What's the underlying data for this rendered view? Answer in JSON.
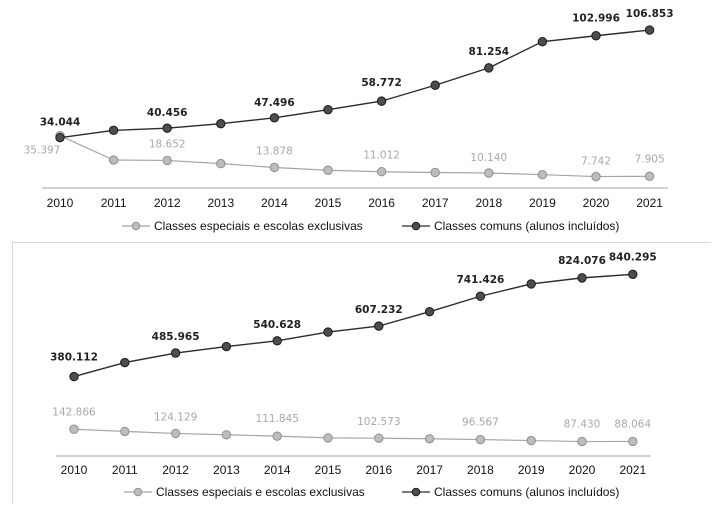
{
  "colors": {
    "comuns_line": "#2b2b2b",
    "comuns_marker": "#4d4d4d",
    "especiais_line": "#a6a6a6",
    "especiais_marker": "#bdbdbd",
    "axis": "#a6a6a6"
  },
  "chart_data": [
    {
      "type": "line",
      "categories": [
        "2010",
        "2011",
        "2012",
        "2013",
        "2014",
        "2015",
        "2016",
        "2017",
        "2018",
        "2019",
        "2020",
        "2021"
      ],
      "grid": false,
      "legend_position": "bottom",
      "ylim": [
        0,
        115000
      ],
      "series": [
        {
          "name": "Classes especiais e escolas exclusivas",
          "key": "especiais",
          "values": [
            35397,
            18900,
            18652,
            16500,
            13878,
            12000,
            11012,
            10500,
            10140,
            9000,
            7742,
            7905
          ],
          "labels": {
            "0": "35.397",
            "2": "18.652",
            "4": "13.878",
            "6": "11.012",
            "8": "10.140",
            "10": "7.742",
            "11": "7.905"
          }
        },
        {
          "name": "Classes comuns (alunos incluídos)",
          "key": "comuns",
          "values": [
            34044,
            39000,
            40456,
            43500,
            47496,
            53000,
            58772,
            69500,
            81254,
            99000,
            102996,
            106853
          ],
          "labels": {
            "0": "34.044",
            "2": "40.456",
            "4": "47.496",
            "6": "58.772",
            "8": "81.254",
            "10": "102.996",
            "11": "106.853"
          }
        }
      ]
    },
    {
      "type": "line",
      "categories": [
        "2010",
        "2011",
        "2012",
        "2013",
        "2014",
        "2015",
        "2016",
        "2017",
        "2018",
        "2019",
        "2020",
        "2021"
      ],
      "grid": false,
      "legend_position": "bottom",
      "ylim": [
        0,
        900000
      ],
      "series": [
        {
          "name": "Classes especiais e escolas exclusivas",
          "key": "especiais",
          "values": [
            142866,
            133000,
            124129,
            118000,
            111845,
            104000,
            102573,
            100000,
            96567,
            92000,
            87430,
            88064
          ],
          "labels": {
            "0": "142.866",
            "2": "124.129",
            "4": "111.845",
            "6": "102.573",
            "8": "96.567",
            "10": "87.430",
            "11": "88.064"
          }
        },
        {
          "name": "Classes comuns (alunos incluídos)",
          "key": "comuns",
          "values": [
            380112,
            443000,
            485965,
            515000,
            540628,
            580000,
            607232,
            672000,
            741426,
            797000,
            824076,
            840295
          ],
          "labels": {
            "0": "380.112",
            "2": "485.965",
            "4": "540.628",
            "6": "607.232",
            "8": "741.426",
            "10": "824.076",
            "11": "840.295"
          }
        }
      ]
    }
  ]
}
